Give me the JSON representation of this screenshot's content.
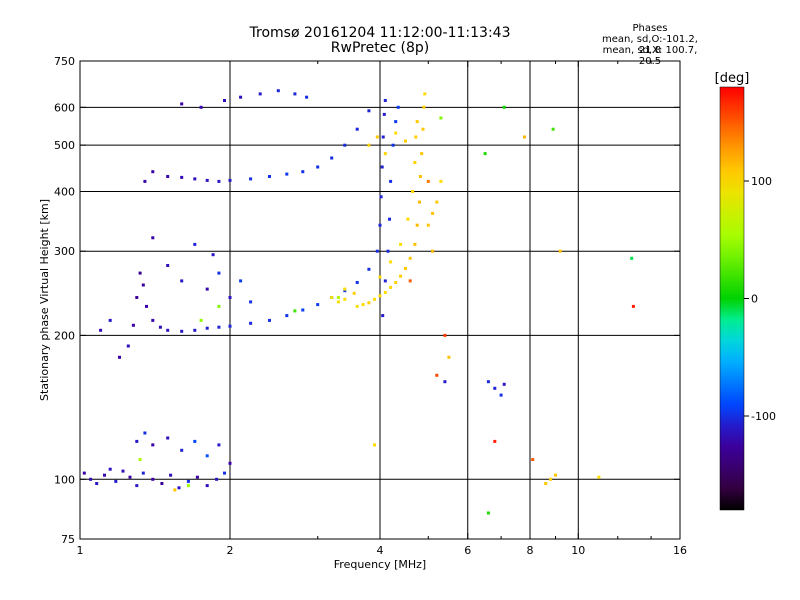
{
  "title": {
    "line1": "Tromsø 20161204  11:12:00-11:13:43",
    "line2": "RwPretec (8p)"
  },
  "phases_box": {
    "heading": "Phases",
    "line_o": "mean, sd,O:-101.2, 21.8",
    "line_x": "mean, sd,X: 100.7, 20.5"
  },
  "colorbar": {
    "label": "[deg]",
    "ticks": [
      {
        "value": 100,
        "label": "100"
      },
      {
        "value": 0,
        "label": "0"
      },
      {
        "value": -100,
        "label": "-100"
      }
    ],
    "min": -180,
    "max": 180
  },
  "chart_data": {
    "type": "scatter",
    "title": "Tromsø 20161204  11:12:00-11:13:43",
    "subtitle": "RwPretec (8p)",
    "xlabel": "Frequency [MHz]",
    "ylabel": "Stationary phase Virtual Height [km]",
    "xscale": "log",
    "yscale": "log",
    "xlim": [
      1,
      16
    ],
    "ylim": [
      75,
      750
    ],
    "x_ticks": [
      {
        "value": 1,
        "label": "1"
      },
      {
        "value": 2,
        "label": "2"
      },
      {
        "value": 4,
        "label": "4"
      },
      {
        "value": 6,
        "label": "6"
      },
      {
        "value": 8,
        "label": "8"
      },
      {
        "value": 10,
        "label": "10"
      },
      {
        "value": 16,
        "label": "16"
      }
    ],
    "x_minor_ticks": [
      3,
      5,
      7,
      9,
      12,
      14
    ],
    "y_ticks": [
      {
        "value": 75,
        "label": "75"
      },
      {
        "value": 100,
        "label": "100"
      },
      {
        "value": 200,
        "label": "200"
      },
      {
        "value": 300,
        "label": "300"
      },
      {
        "value": 400,
        "label": "400"
      },
      {
        "value": 500,
        "label": "500"
      },
      {
        "value": 600,
        "label": "600"
      },
      {
        "value": 750,
        "label": "750"
      }
    ],
    "x_gridlines": [
      2,
      4,
      6,
      8,
      10
    ],
    "y_gridlines": [
      100,
      200,
      300,
      400,
      500,
      600
    ],
    "grid": true,
    "color_by": "phase [deg]",
    "series": [
      {
        "points": [
          [
            1.02,
            103,
            -120
          ],
          [
            1.05,
            100,
            -115
          ],
          [
            1.08,
            98,
            -110
          ],
          [
            1.12,
            102,
            -118
          ],
          [
            1.15,
            105,
            -112
          ],
          [
            1.18,
            99,
            -108
          ],
          [
            1.22,
            104,
            -115
          ],
          [
            1.26,
            101,
            -125
          ],
          [
            1.3,
            97,
            -110
          ],
          [
            1.34,
            103,
            -105
          ],
          [
            1.4,
            100,
            -120
          ],
          [
            1.46,
            98,
            -130
          ],
          [
            1.52,
            102,
            -115
          ],
          [
            1.58,
            96,
            -110
          ],
          [
            1.65,
            99,
            -100
          ],
          [
            1.72,
            101,
            -125
          ],
          [
            1.8,
            97,
            -115
          ],
          [
            1.88,
            100,
            -110
          ],
          [
            1.95,
            103,
            -100
          ],
          [
            1.3,
            120,
            -110
          ],
          [
            1.35,
            125,
            -100
          ],
          [
            1.4,
            118,
            -120
          ],
          [
            1.5,
            122,
            -115
          ],
          [
            1.6,
            115,
            -105
          ],
          [
            1.7,
            120,
            -90
          ],
          [
            1.8,
            112,
            -85
          ],
          [
            1.9,
            118,
            -110
          ],
          [
            2.0,
            108,
            -120
          ],
          [
            1.1,
            205,
            -115
          ],
          [
            1.15,
            215,
            -110
          ],
          [
            1.2,
            180,
            -120
          ],
          [
            1.25,
            190,
            -115
          ],
          [
            1.28,
            210,
            -120
          ],
          [
            1.3,
            240,
            -125
          ],
          [
            1.32,
            270,
            -130
          ],
          [
            1.34,
            255,
            -125
          ],
          [
            1.36,
            230,
            -120
          ],
          [
            1.4,
            215,
            -118
          ],
          [
            1.45,
            208,
            -115
          ],
          [
            1.5,
            205,
            -112
          ],
          [
            1.6,
            204,
            -110
          ],
          [
            1.7,
            205,
            -108
          ],
          [
            1.8,
            207,
            -106
          ],
          [
            1.9,
            208,
            -105
          ],
          [
            2.0,
            209,
            -104
          ],
          [
            2.2,
            212,
            -102
          ],
          [
            2.4,
            215,
            -100
          ],
          [
            2.6,
            220,
            -98
          ],
          [
            2.8,
            226,
            -96
          ],
          [
            3.0,
            232,
            -95
          ],
          [
            3.2,
            240,
            -96
          ],
          [
            3.4,
            248,
            -97
          ],
          [
            3.6,
            258,
            -98
          ],
          [
            3.8,
            275,
            -100
          ],
          [
            3.95,
            300,
            -102
          ],
          [
            4.0,
            340,
            -104
          ],
          [
            4.02,
            390,
            -105
          ],
          [
            4.04,
            450,
            -106
          ],
          [
            4.06,
            520,
            -107
          ],
          [
            4.08,
            580,
            -108
          ],
          [
            4.1,
            620,
            -106
          ],
          [
            1.35,
            420,
            -118
          ],
          [
            1.4,
            440,
            -120
          ],
          [
            1.5,
            430,
            -118
          ],
          [
            1.6,
            428,
            -116
          ],
          [
            1.7,
            425,
            -115
          ],
          [
            1.8,
            422,
            -112
          ],
          [
            1.9,
            420,
            -110
          ],
          [
            2.0,
            422,
            -108
          ],
          [
            2.2,
            425,
            -100
          ],
          [
            2.4,
            430,
            -98
          ],
          [
            2.6,
            435,
            -97
          ],
          [
            2.8,
            440,
            -99
          ],
          [
            3.0,
            450,
            -100
          ],
          [
            3.2,
            470,
            -101
          ],
          [
            3.4,
            500,
            -102
          ],
          [
            3.6,
            540,
            -104
          ],
          [
            3.8,
            590,
            -106
          ],
          [
            1.6,
            610,
            -120
          ],
          [
            1.75,
            600,
            -118
          ],
          [
            1.95,
            620,
            -115
          ],
          [
            2.1,
            630,
            -112
          ],
          [
            2.3,
            640,
            -108
          ],
          [
            2.5,
            650,
            -105
          ],
          [
            2.7,
            640,
            -103
          ],
          [
            2.85,
            630,
            -100
          ],
          [
            1.4,
            320,
            -120
          ],
          [
            1.5,
            280,
            -115
          ],
          [
            1.6,
            260,
            -110
          ],
          [
            1.8,
            250,
            -118
          ],
          [
            1.9,
            270,
            -100
          ],
          [
            2.0,
            240,
            -112
          ],
          [
            2.1,
            260,
            -95
          ],
          [
            2.2,
            235,
            -100
          ],
          [
            1.7,
            310,
            -105
          ],
          [
            1.85,
            295,
            -110
          ],
          [
            4.05,
            220,
            -110
          ],
          [
            4.1,
            260,
            -106
          ],
          [
            4.15,
            300,
            -104
          ],
          [
            4.18,
            350,
            -102
          ],
          [
            4.2,
            420,
            -100
          ],
          [
            4.25,
            500,
            -98
          ],
          [
            4.3,
            560,
            -96
          ],
          [
            4.35,
            600,
            -95
          ],
          [
            7.0,
            150,
            -100
          ],
          [
            6.8,
            155,
            -105
          ],
          [
            7.1,
            158,
            -110
          ],
          [
            6.6,
            160,
            -102
          ],
          [
            5.4,
            160,
            -108
          ]
        ]
      },
      {
        "points": [
          [
            3.6,
            230,
            95
          ],
          [
            3.7,
            232,
            100
          ],
          [
            3.8,
            234,
            105
          ],
          [
            3.9,
            238,
            100
          ],
          [
            4.0,
            242,
            98
          ],
          [
            4.1,
            246,
            100
          ],
          [
            4.2,
            252,
            102
          ],
          [
            4.3,
            258,
            104
          ],
          [
            4.4,
            266,
            106
          ],
          [
            4.5,
            276,
            108
          ],
          [
            4.6,
            290,
            110
          ],
          [
            4.7,
            310,
            112
          ],
          [
            4.75,
            340,
            114
          ],
          [
            4.8,
            380,
            115
          ],
          [
            4.82,
            430,
            112
          ],
          [
            4.85,
            480,
            110
          ],
          [
            4.88,
            540,
            108
          ],
          [
            4.9,
            600,
            105
          ],
          [
            4.92,
            640,
            100
          ],
          [
            3.4,
            250,
            100
          ],
          [
            3.55,
            245,
            105
          ],
          [
            4.0,
            265,
            100
          ],
          [
            4.2,
            285,
            98
          ],
          [
            4.4,
            310,
            96
          ],
          [
            4.55,
            350,
            100
          ],
          [
            4.65,
            400,
            102
          ],
          [
            4.7,
            460,
            104
          ],
          [
            4.72,
            520,
            106
          ],
          [
            4.75,
            560,
            108
          ],
          [
            3.8,
            500,
            105
          ],
          [
            3.95,
            520,
            108
          ],
          [
            4.1,
            480,
            104
          ],
          [
            4.3,
            530,
            100
          ],
          [
            4.5,
            510,
            106
          ],
          [
            5.0,
            340,
            110
          ],
          [
            5.1,
            360,
            112
          ],
          [
            5.2,
            380,
            108
          ],
          [
            5.3,
            420,
            100
          ],
          [
            5.1,
            300,
            115
          ],
          [
            3.3,
            235,
            96
          ],
          [
            3.2,
            240,
            92
          ],
          [
            3.4,
            238,
            98
          ],
          [
            8.8,
            100,
            105
          ],
          [
            9.0,
            102,
            110
          ],
          [
            8.6,
            98,
            108
          ],
          [
            11.0,
            101,
            100
          ],
          [
            9.2,
            300,
            110
          ],
          [
            7.8,
            520,
            115
          ],
          [
            5.5,
            180,
            112
          ],
          [
            3.9,
            118,
            100
          ],
          [
            1.55,
            95,
            110
          ]
        ]
      },
      {
        "points": [
          [
            5.3,
            570,
            40
          ],
          [
            6.5,
            480,
            10
          ],
          [
            3.3,
            240,
            60
          ],
          [
            2.7,
            225,
            20
          ],
          [
            1.9,
            230,
            40
          ],
          [
            1.75,
            215,
            45
          ],
          [
            1.65,
            97,
            50
          ],
          [
            1.32,
            110,
            60
          ],
          [
            6.6,
            85,
            10
          ],
          [
            8.9,
            540,
            20
          ],
          [
            7.1,
            600,
            5
          ],
          [
            12.8,
            290,
            -10
          ],
          [
            12.9,
            230,
            170
          ],
          [
            8.1,
            110,
            150
          ],
          [
            5.4,
            200,
            160
          ],
          [
            6.8,
            120,
            170
          ],
          [
            5.2,
            165,
            155
          ],
          [
            4.6,
            260,
            150
          ],
          [
            5.0,
            420,
            140
          ]
        ]
      }
    ]
  }
}
